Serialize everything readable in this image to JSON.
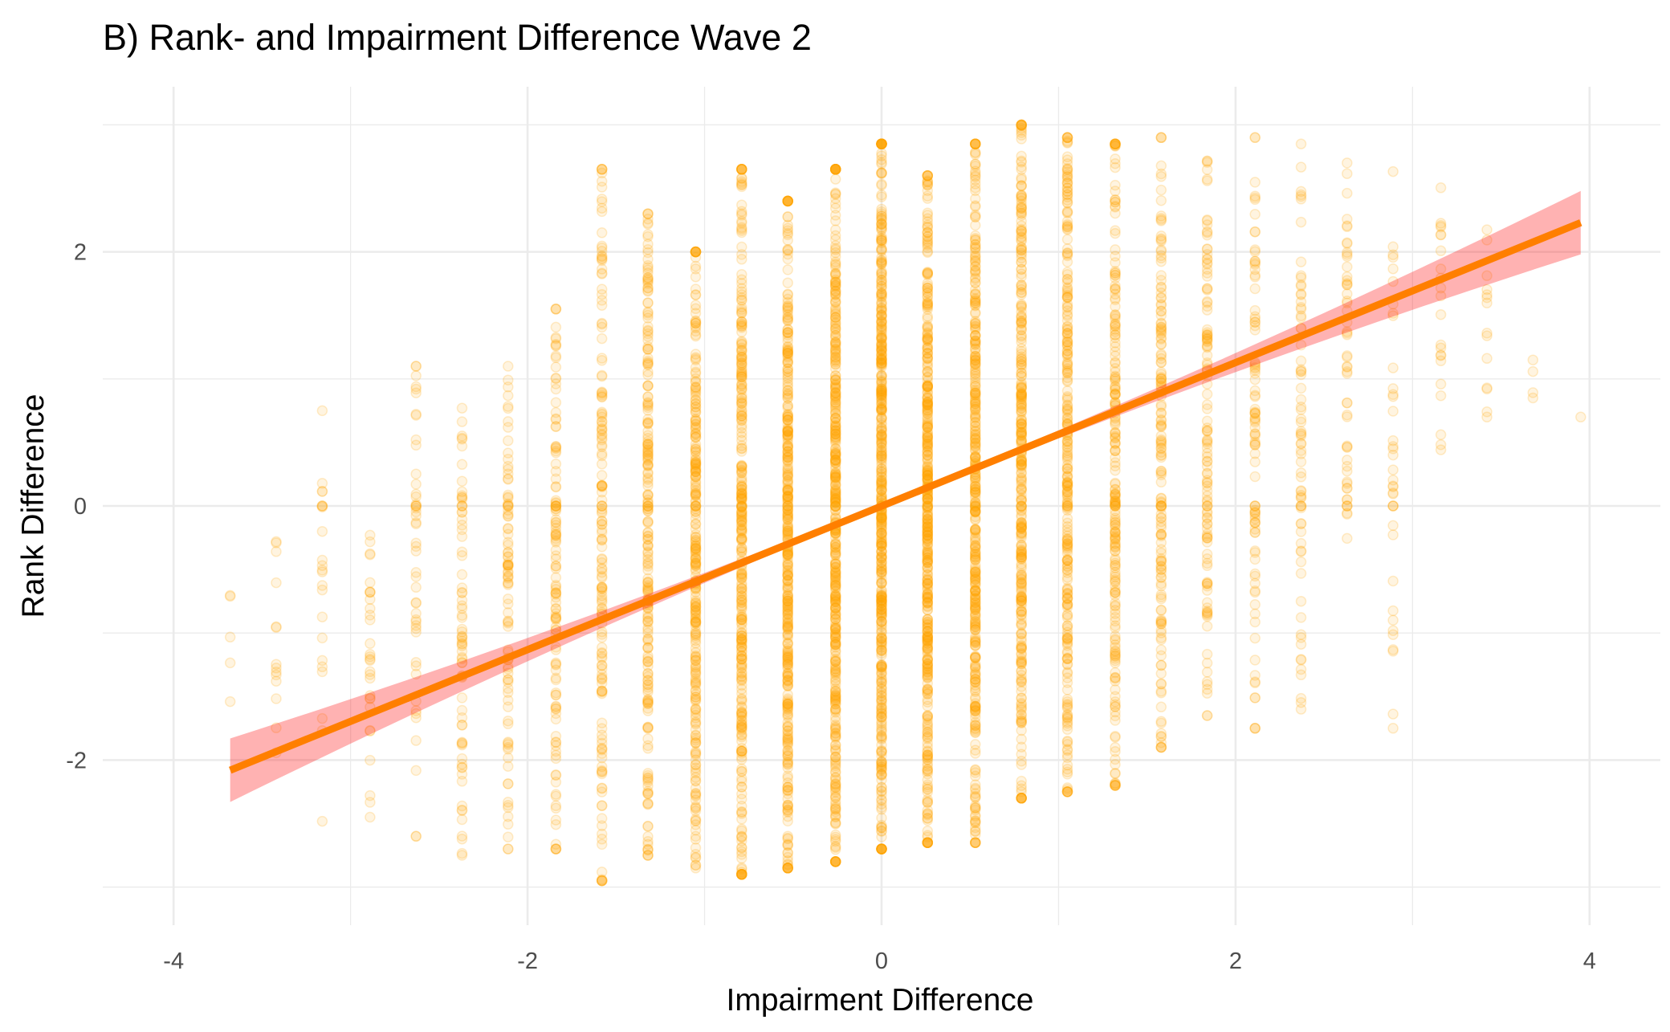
{
  "chart_data": {
    "type": "scatter",
    "title": "B) Rank- and Impairment Difference Wave 2",
    "xlabel": "Impairment Difference",
    "ylabel": "Rank Difference",
    "xlim": [
      -4.4,
      4.4
    ],
    "ylim": [
      -3.3,
      3.3
    ],
    "x_ticks": [
      -4,
      -2,
      0,
      2,
      4
    ],
    "x_tick_labels": [
      "-4",
      "-2",
      "0",
      "2",
      "4"
    ],
    "y_ticks": [
      -2,
      0,
      2
    ],
    "y_tick_labels": [
      "-2",
      "0",
      "2"
    ],
    "grid": true,
    "legend": "none",
    "point_color": "#ffa500",
    "fit_color": "#ff7f00",
    "ci_color": "#ff0000",
    "x_levels": [
      -3.68,
      -3.42,
      -3.16,
      -2.89,
      -2.63,
      -2.37,
      -2.11,
      -1.84,
      -1.58,
      -1.32,
      -1.05,
      -0.79,
      -0.53,
      -0.26,
      0.0,
      0.26,
      0.53,
      0.79,
      1.05,
      1.32,
      1.58,
      1.84,
      2.11,
      2.37,
      2.63,
      2.89,
      3.16,
      3.42,
      3.68,
      3.95
    ],
    "columns": [
      {
        "x": -3.68,
        "n": 5,
        "ymin": -1.8,
        "ymax": -0.7
      },
      {
        "x": -3.42,
        "n": 14,
        "ymin": -2.3,
        "ymax": 0.0
      },
      {
        "x": -3.16,
        "n": 20,
        "ymin": -2.5,
        "ymax": 0.75
      },
      {
        "x": -2.89,
        "n": 30,
        "ymin": -2.45,
        "ymax": -0.05
      },
      {
        "x": -2.63,
        "n": 45,
        "ymin": -2.6,
        "ymax": 1.1
      },
      {
        "x": -2.37,
        "n": 70,
        "ymin": -2.75,
        "ymax": 0.8
      },
      {
        "x": -2.11,
        "n": 90,
        "ymin": -2.7,
        "ymax": 1.1
      },
      {
        "x": -1.84,
        "n": 120,
        "ymin": -2.7,
        "ymax": 1.55
      },
      {
        "x": -1.58,
        "n": 160,
        "ymin": -2.95,
        "ymax": 2.65
      },
      {
        "x": -1.32,
        "n": 220,
        "ymin": -2.75,
        "ymax": 2.3
      },
      {
        "x": -1.05,
        "n": 280,
        "ymin": -2.85,
        "ymax": 2.0
      },
      {
        "x": -0.79,
        "n": 340,
        "ymin": -2.9,
        "ymax": 2.65
      },
      {
        "x": -0.53,
        "n": 400,
        "ymin": -2.85,
        "ymax": 2.4
      },
      {
        "x": -0.26,
        "n": 450,
        "ymin": -2.8,
        "ymax": 2.65
      },
      {
        "x": 0.0,
        "n": 500,
        "ymin": -2.7,
        "ymax": 2.85
      },
      {
        "x": 0.26,
        "n": 450,
        "ymin": -2.65,
        "ymax": 2.6
      },
      {
        "x": 0.53,
        "n": 400,
        "ymin": -2.65,
        "ymax": 2.85
      },
      {
        "x": 0.79,
        "n": 340,
        "ymin": -2.3,
        "ymax": 3.0
      },
      {
        "x": 1.05,
        "n": 280,
        "ymin": -2.25,
        "ymax": 2.9
      },
      {
        "x": 1.32,
        "n": 220,
        "ymin": -2.2,
        "ymax": 2.85
      },
      {
        "x": 1.58,
        "n": 160,
        "ymin": -1.9,
        "ymax": 2.9
      },
      {
        "x": 1.84,
        "n": 120,
        "ymin": -1.65,
        "ymax": 2.85
      },
      {
        "x": 2.11,
        "n": 90,
        "ymin": -1.75,
        "ymax": 2.9
      },
      {
        "x": 2.37,
        "n": 70,
        "ymin": -1.6,
        "ymax": 2.85
      },
      {
        "x": 2.63,
        "n": 50,
        "ymin": -0.3,
        "ymax": 2.7
      },
      {
        "x": 2.89,
        "n": 35,
        "ymin": -1.75,
        "ymax": 2.75
      },
      {
        "x": 3.16,
        "n": 22,
        "ymin": 0.2,
        "ymax": 2.8
      },
      {
        "x": 3.42,
        "n": 14,
        "ymin": 0.7,
        "ymax": 2.55
      },
      {
        "x": 3.68,
        "n": 4,
        "ymin": 0.85,
        "ymax": 1.2
      },
      {
        "x": 3.95,
        "n": 1,
        "ymin": 0.7,
        "ymax": 0.7
      }
    ],
    "fit": {
      "method": "linear",
      "x_range": [
        -3.68,
        3.95
      ],
      "y_range": [
        -2.08,
        2.23
      ],
      "ci_half_width_end": 0.25,
      "ci_half_width_center": 0.02
    }
  }
}
